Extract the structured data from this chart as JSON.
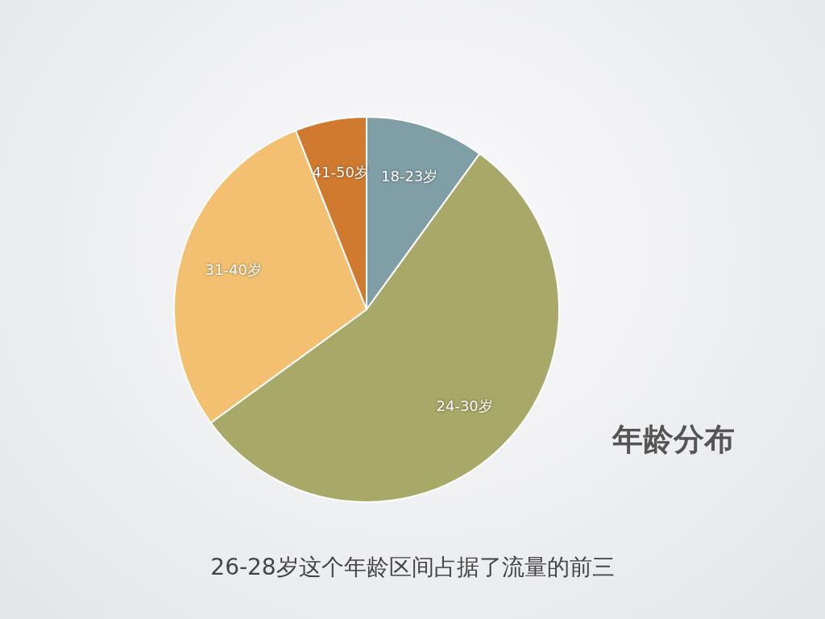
{
  "chart_data": {
    "type": "pie",
    "title": "年龄分布",
    "categories": [
      "18-23岁",
      "24-30岁",
      "31-40岁",
      "41-50岁"
    ],
    "values": [
      10,
      55,
      29,
      6
    ],
    "colors": [
      "#7f9ea6",
      "#a8a868",
      "#f2c070",
      "#d07a30"
    ],
    "annotations": [
      "26-28岁这个年龄区间占据了流量的前三"
    ],
    "legend": false
  }
}
